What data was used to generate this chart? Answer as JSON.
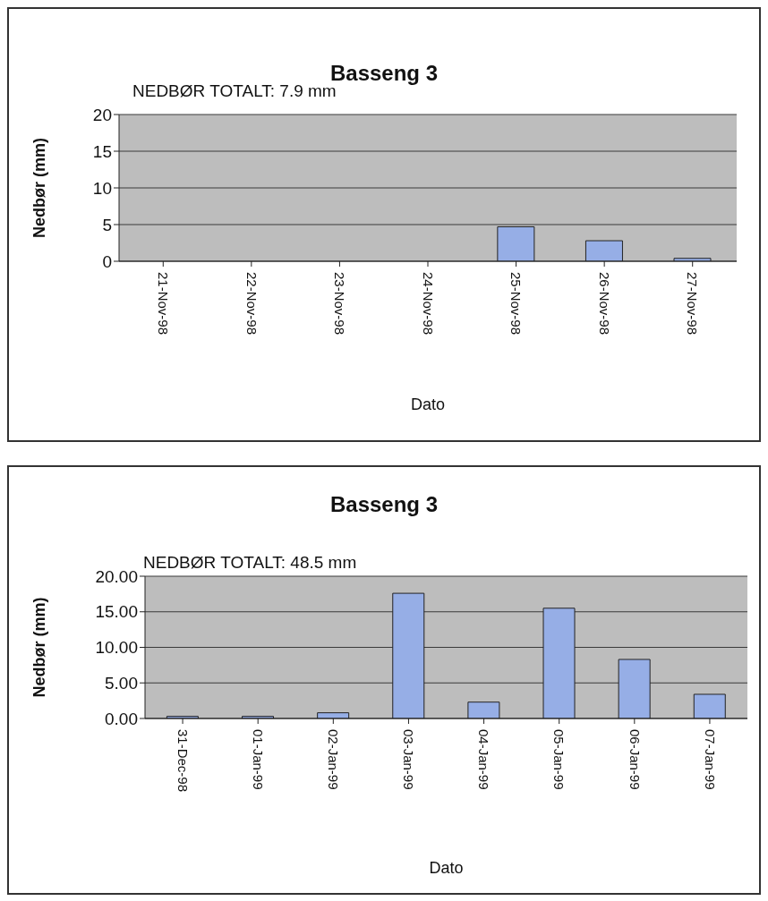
{
  "chart_data": [
    {
      "type": "bar",
      "title": "Basseng 3",
      "subtitle": "NEDBØR TOTALT: 7.9 mm",
      "xlabel": "Dato",
      "ylabel": "Nedbør (mm)",
      "categories": [
        "21-Nov-98",
        "22-Nov-98",
        "23-Nov-98",
        "24-Nov-98",
        "25-Nov-98",
        "26-Nov-98",
        "27-Nov-98"
      ],
      "values": [
        0,
        0,
        0,
        0,
        4.7,
        2.8,
        0.4
      ],
      "color": "#96aee6",
      "ylim": [
        0,
        20
      ],
      "yticks": [
        0,
        5,
        10,
        15,
        20
      ],
      "grid": "y"
    },
    {
      "type": "bar",
      "title": "Basseng 3",
      "subtitle": "NEDBØR TOTALT: 48.5 mm",
      "xlabel": "Dato",
      "ylabel": "Nedbør (mm)",
      "categories": [
        "31-Dec-98",
        "01-Jan-99",
        "02-Jan-99",
        "03-Jan-99",
        "04-Jan-99",
        "05-Jan-99",
        "06-Jan-99",
        "07-Jan-99"
      ],
      "values": [
        0.3,
        0.3,
        0.8,
        17.6,
        2.3,
        15.5,
        8.3,
        3.4
      ],
      "color": "#96aee6",
      "ylim": [
        0,
        20
      ],
      "yticks": [
        {
          "value": 0,
          "label": "0.00"
        },
        {
          "value": 5,
          "label": "5.00"
        },
        {
          "value": 10,
          "label": "10.00"
        },
        {
          "value": 15,
          "label": "15.00"
        },
        {
          "value": 20,
          "label": "20.00"
        }
      ],
      "grid": "y"
    }
  ]
}
